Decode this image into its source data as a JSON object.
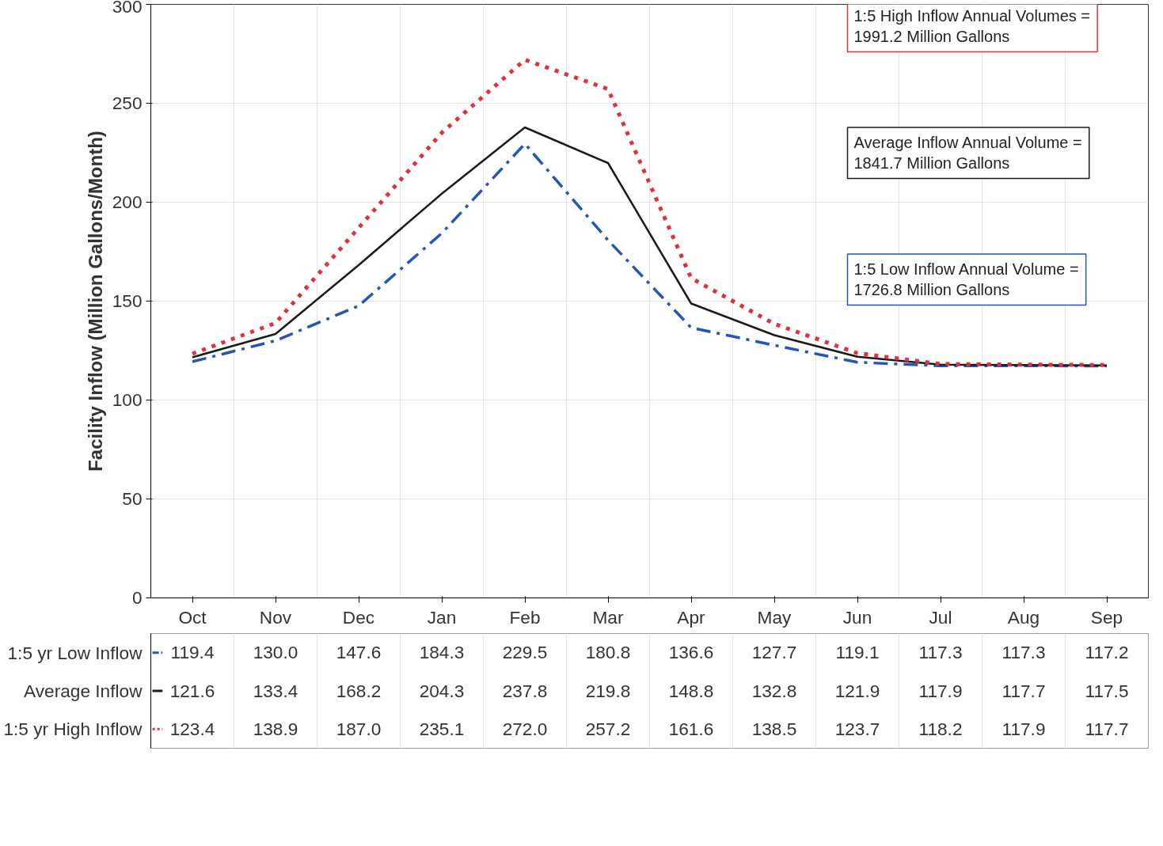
{
  "chart_data": {
    "type": "line",
    "ylabel": "Facility Inflow (Million Gallons/Month)",
    "categories": [
      "Oct",
      "Nov",
      "Dec",
      "Jan",
      "Feb",
      "Mar",
      "Apr",
      "May",
      "Jun",
      "Jul",
      "Aug",
      "Sep"
    ],
    "series": [
      {
        "name": "1:5 yr Low Inflow",
        "color": "#2456b8",
        "line_style": "dashed",
        "values": [
          119.4,
          130.0,
          147.6,
          184.3,
          229.5,
          180.8,
          136.6,
          127.7,
          119.1,
          117.3,
          117.3,
          117.2
        ],
        "value_labels": [
          "119.4",
          "130.0",
          "147.6",
          "184.3",
          "229.5",
          "180.8",
          "136.6",
          "127.7",
          "119.1",
          "117.3",
          "117.3",
          "117.2"
        ]
      },
      {
        "name": "Average Inflow",
        "color": "#1a1a1a",
        "line_style": "solid",
        "values": [
          121.6,
          133.4,
          168.2,
          204.3,
          237.8,
          219.8,
          148.8,
          132.8,
          121.9,
          117.9,
          117.7,
          117.5
        ],
        "value_labels": [
          "121.6",
          "133.4",
          "168.2",
          "204.3",
          "237.8",
          "219.8",
          "148.8",
          "132.8",
          "121.9",
          "117.9",
          "117.7",
          "117.5"
        ]
      },
      {
        "name": "1:5 yr High Inflow",
        "color": "#e0303a",
        "line_style": "dotted",
        "values": [
          123.4,
          138.9,
          187.0,
          235.1,
          272.0,
          257.2,
          161.6,
          138.5,
          123.7,
          118.2,
          117.9,
          117.7
        ],
        "value_labels": [
          "123.4",
          "138.9",
          "187.0",
          "235.1",
          "272.0",
          "257.2",
          "161.6",
          "138.5",
          "123.7",
          "118.2",
          "117.9",
          "117.7"
        ]
      }
    ],
    "ylim": [
      0,
      300
    ],
    "yticks": [
      0,
      50,
      100,
      150,
      200,
      250,
      300
    ],
    "grid": true,
    "legend": "bottom left",
    "annotations": [
      "1:5 High Inflow Annual Volumes = 1991.2 Million Gallons",
      "Average Inflow Annual Volume = 1841.7 Million Gallons",
      "1:5 Low Inflow Annual Volume = 1726.8 Million Gallons"
    ]
  }
}
